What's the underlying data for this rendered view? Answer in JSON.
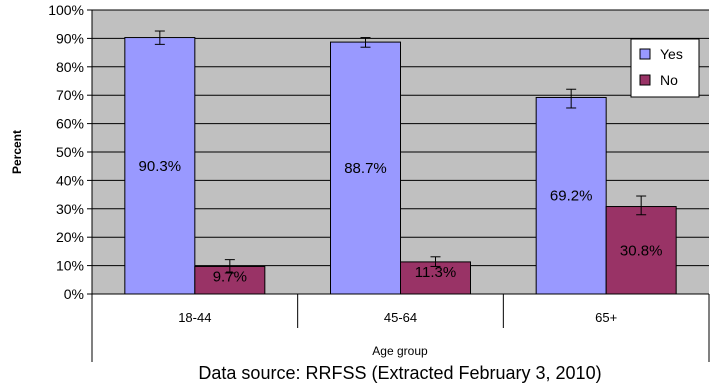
{
  "chart_data": {
    "type": "bar",
    "categories": [
      "18-44",
      "45-64",
      "65+"
    ],
    "series": [
      {
        "name": "Yes",
        "color": "#9999ff",
        "values": [
          90.3,
          88.7,
          69.2
        ],
        "labels": [
          "90.3%",
          "88.7%",
          "69.2%"
        ],
        "error_low": [
          87.9,
          86.9,
          65.5
        ],
        "error_high": [
          92.6,
          90.3,
          72.1
        ]
      },
      {
        "name": "No",
        "color": "#993366",
        "values": [
          9.7,
          11.3,
          30.8
        ],
        "labels": [
          "9.7%",
          "11.3%",
          "30.8%"
        ],
        "error_low": [
          7.4,
          9.7,
          27.9
        ],
        "error_high": [
          12.1,
          13.1,
          34.5
        ]
      }
    ],
    "ylabel": "Percent",
    "xlabel": "Age group",
    "ylim": [
      0,
      100
    ],
    "yticks": [
      0,
      10,
      20,
      30,
      40,
      50,
      60,
      70,
      80,
      90,
      100
    ],
    "ytick_labels": [
      "0%",
      "10%",
      "20%",
      "30%",
      "40%",
      "50%",
      "60%",
      "70%",
      "80%",
      "90%",
      "100%"
    ],
    "plot_background": "#c0c0c0",
    "gridlines": true,
    "legend": "right",
    "source": "Data source: RRFSS (Extracted February 3, 2010)"
  }
}
